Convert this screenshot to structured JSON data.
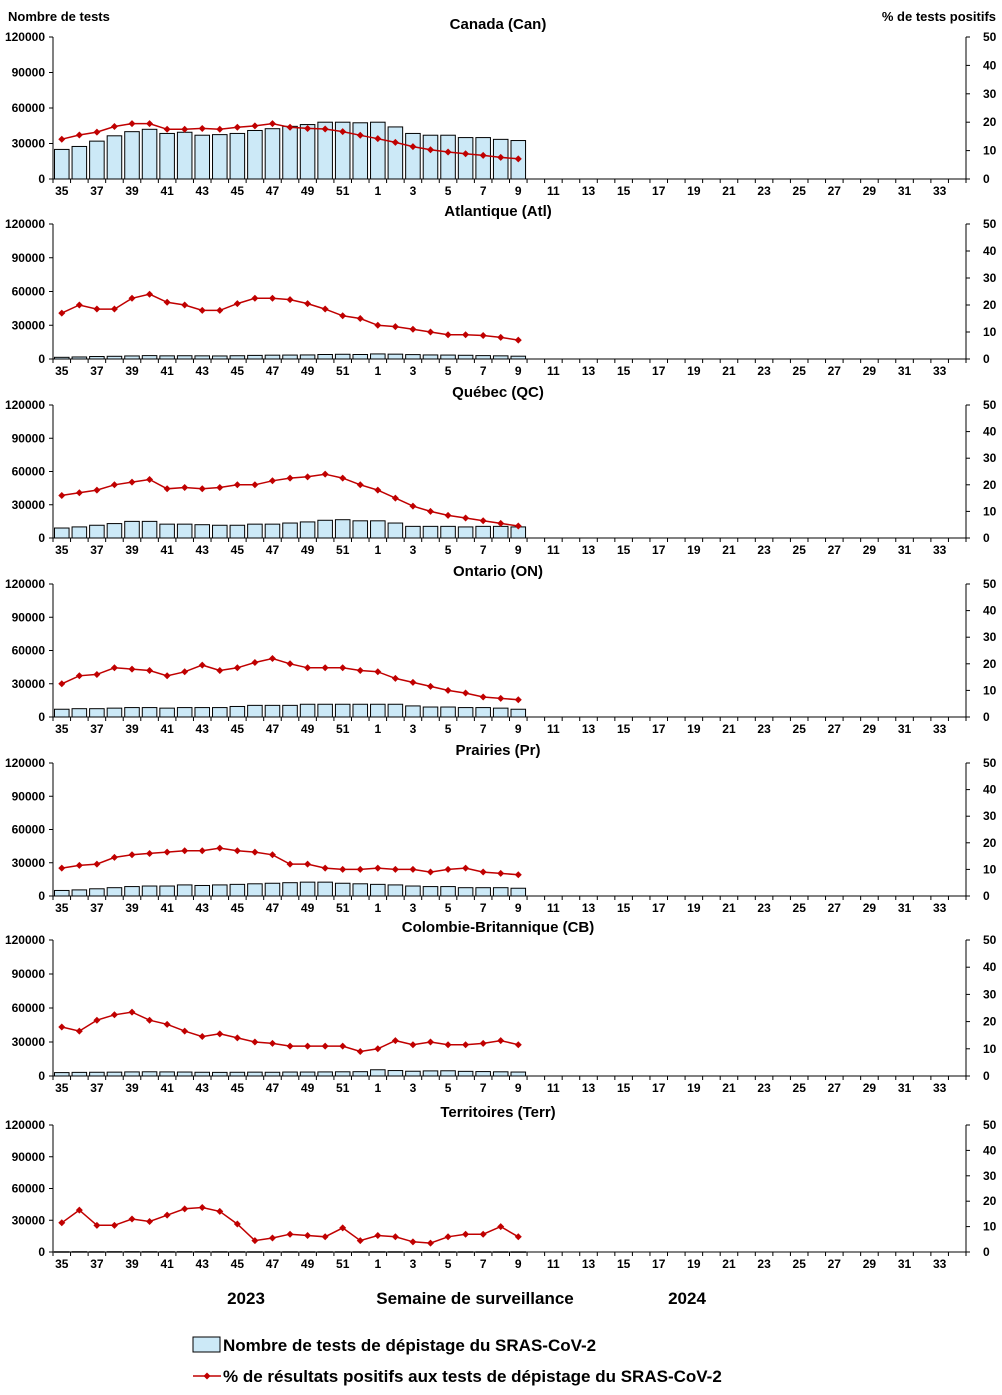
{
  "header": {
    "left_axis_title": "Nombre de tests",
    "right_axis_title": "% de tests positifs"
  },
  "chart_data": {
    "type": "bar",
    "weeks": [
      "35",
      "36",
      "37",
      "38",
      "39",
      "40",
      "41",
      "42",
      "43",
      "44",
      "45",
      "46",
      "47",
      "48",
      "49",
      "50",
      "51",
      "52",
      "1",
      "2",
      "3",
      "4",
      "5",
      "6",
      "7",
      "8",
      "9",
      "10",
      "11",
      "12",
      "13",
      "14",
      "15",
      "16",
      "17",
      "18",
      "19",
      "20",
      "21",
      "22",
      "23",
      "24",
      "25",
      "26",
      "27",
      "28",
      "29",
      "30",
      "31",
      "32",
      "33",
      "34"
    ],
    "x_tick_labels": [
      "35",
      "37",
      "39",
      "41",
      "43",
      "45",
      "47",
      "49",
      "51",
      "1",
      "3",
      "5",
      "7",
      "9",
      "11",
      "13",
      "15",
      "17",
      "19",
      "21",
      "23",
      "25",
      "27",
      "29",
      "31",
      "33"
    ],
    "y_left_ticks": [
      "0",
      "30000",
      "60000",
      "90000",
      "120000"
    ],
    "y_right_ticks": [
      "0",
      "10",
      "20",
      "30",
      "40",
      "50"
    ],
    "y_left_range": [
      0,
      120000
    ],
    "y_right_range": [
      0,
      50
    ],
    "xlabel": "Semaine de surveillance",
    "year_labels": [
      "2023",
      "2024"
    ],
    "legend": {
      "bars": "Nombre de tests de dépistage du SRAS-CoV-2",
      "line": "% de résultats positifs aux tests de dépistage du SRAS-CoV-2"
    },
    "colors": {
      "bar_fill": "#cce9f7",
      "bar_stroke": "#000000",
      "line": "#c00000"
    },
    "panels": [
      {
        "title": "Canada (Can)",
        "tests": [
          25000,
          27500,
          32000,
          36500,
          40000,
          42000,
          38500,
          39500,
          37000,
          37500,
          38500,
          41000,
          42500,
          44500,
          46000,
          48000,
          48000,
          47500,
          48000,
          44000,
          38500,
          37000,
          37000,
          35000,
          35000,
          33500,
          32500
        ],
        "positivity": [
          14,
          15.5,
          16.5,
          18.5,
          19.5,
          19.5,
          17.5,
          17.5,
          17.8,
          17.5,
          18.2,
          18.7,
          19.5,
          18.2,
          17.8,
          17.6,
          16.7,
          15.4,
          14.2,
          12.9,
          11.4,
          10.3,
          9.5,
          8.9,
          8.3,
          7.6,
          7.1
        ]
      },
      {
        "title": "Atlantique (Atl)",
        "tests": [
          1500,
          1800,
          2200,
          2400,
          2700,
          3000,
          2800,
          2900,
          2800,
          2700,
          2900,
          3200,
          3400,
          3500,
          3600,
          4000,
          4200,
          4000,
          4500,
          4300,
          3900,
          3600,
          3500,
          3300,
          3000,
          2800,
          2500
        ],
        "positivity": [
          17,
          20,
          18.5,
          18.5,
          22.5,
          24,
          21,
          20,
          18,
          18,
          20.5,
          22.5,
          22.5,
          22,
          20.5,
          18.5,
          16,
          15,
          12.5,
          12,
          11,
          10,
          9,
          9,
          8.7,
          8,
          7
        ]
      },
      {
        "title": "Québec (QC)",
        "tests": [
          9000,
          10000,
          11500,
          13000,
          15000,
          15000,
          12500,
          12500,
          12000,
          11500,
          11500,
          12500,
          12500,
          13500,
          14500,
          16000,
          16500,
          15500,
          15500,
          13500,
          10500,
          10500,
          10500,
          10000,
          10500,
          10500,
          10000
        ],
        "positivity": [
          16,
          17,
          18,
          20,
          21,
          22,
          18.5,
          19,
          18.5,
          19,
          20,
          20,
          21.5,
          22.5,
          23,
          24,
          22.5,
          20,
          18,
          15,
          12,
          10,
          8.5,
          7.5,
          6.5,
          5.5,
          4.5
        ]
      },
      {
        "title": "Ontario (ON)",
        "tests": [
          7000,
          7500,
          7500,
          8000,
          8500,
          8500,
          8000,
          8500,
          8500,
          8500,
          9500,
          10500,
          10500,
          10500,
          11500,
          11500,
          11500,
          11500,
          11500,
          11500,
          10000,
          9000,
          9000,
          8500,
          8500,
          8000,
          7000
        ],
        "positivity": [
          12.5,
          15.5,
          16,
          18.5,
          18,
          17.5,
          15.5,
          17,
          19.5,
          17.5,
          18.5,
          20.5,
          22,
          20,
          18.5,
          18.5,
          18.5,
          17.5,
          17,
          14.5,
          13,
          11.5,
          10,
          9,
          7.5,
          7,
          6.5
        ]
      },
      {
        "title": "Prairies (Pr)",
        "tests": [
          5000,
          5500,
          6500,
          7500,
          8500,
          9000,
          9000,
          10000,
          9500,
          10000,
          10500,
          11000,
          11500,
          12000,
          12500,
          12500,
          11500,
          11000,
          10500,
          10000,
          9000,
          8500,
          8500,
          7500,
          7500,
          7500,
          7000
        ],
        "positivity": [
          10.5,
          11.5,
          12,
          14.5,
          15.5,
          16,
          16.5,
          17,
          17,
          18,
          17,
          16.5,
          15.5,
          12,
          12,
          10.5,
          10,
          10,
          10.5,
          10,
          10,
          9,
          10,
          10.5,
          9,
          8.5,
          8
        ]
      },
      {
        "title": "Colombie-Britannique (CB)",
        "tests": [
          3000,
          3200,
          3300,
          3400,
          3600,
          3700,
          3600,
          3500,
          3300,
          3200,
          3300,
          3400,
          3300,
          3500,
          3500,
          3600,
          3700,
          3800,
          5500,
          4800,
          4200,
          4500,
          4600,
          4100,
          3900,
          3700,
          3500
        ],
        "positivity": [
          18,
          16.5,
          20.5,
          22.5,
          23.5,
          20.5,
          19,
          16.5,
          14.5,
          15.5,
          14,
          12.5,
          12,
          11,
          11,
          11,
          11,
          9,
          10,
          13,
          11.5,
          12.5,
          11.5,
          11.5,
          12,
          13,
          11.5
        ]
      },
      {
        "title": "Territoires (Terr)",
        "tests": [
          250,
          300,
          250,
          300,
          320,
          300,
          280,
          300,
          300,
          280,
          260,
          240,
          230,
          240,
          220,
          220,
          230,
          220,
          250,
          240,
          220,
          200,
          220,
          210,
          200,
          200,
          190
        ],
        "positivity": [
          11.5,
          16.5,
          10.5,
          10.5,
          13,
          12,
          14.5,
          17,
          17.5,
          16,
          11,
          4.5,
          5.5,
          7,
          6.5,
          6,
          9.5,
          4.5,
          6.5,
          6,
          4,
          3.5,
          6,
          7,
          7,
          10,
          6
        ]
      }
    ]
  }
}
